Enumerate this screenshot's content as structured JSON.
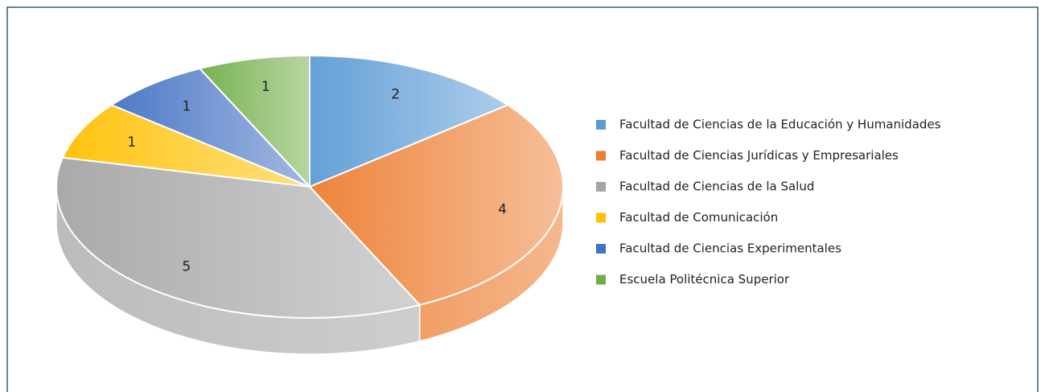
{
  "chart_data": {
    "type": "pie",
    "categories": [
      "Facultad de Ciencias de la Educación y Humanidades",
      "Facultad de Ciencias Jurídicas y Empresariales",
      "Facultad de Ciencias de la Salud",
      "Facultad de Comunicación",
      "Facultad de Ciencias Experimentales",
      "Escuela Politécnica Superior"
    ],
    "values": [
      2,
      4,
      5,
      1,
      1,
      1
    ],
    "colors": [
      "#5b9bd5",
      "#ed7d31",
      "#a5a5a5",
      "#ffc000",
      "#4472c4",
      "#70ad47"
    ],
    "legend": "right"
  }
}
